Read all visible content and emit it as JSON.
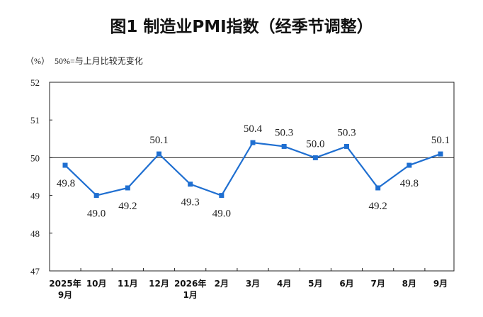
{
  "chart_data": {
    "type": "line",
    "title": "图1  制造业PMI指数（经季节调整）",
    "unit_note": "（%）",
    "reference_note": "50%=与上月比较无变化",
    "categories": [
      [
        "2025年",
        "9月"
      ],
      [
        "10月"
      ],
      [
        "11月"
      ],
      [
        "12月"
      ],
      [
        "2026年",
        "1月"
      ],
      [
        "2月"
      ],
      [
        "3月"
      ],
      [
        "4月"
      ],
      [
        "5月"
      ],
      [
        "6月"
      ],
      [
        "7月"
      ],
      [
        "8月"
      ],
      [
        "9月"
      ]
    ],
    "series": [
      {
        "values": [
          49.8,
          49.0,
          49.2,
          50.1,
          49.3,
          49.0,
          50.4,
          50.3,
          50.0,
          50.3,
          49.2,
          49.8,
          50.1
        ]
      }
    ],
    "data_labels": [
      "49.8",
      "49.0",
      "49.2",
      "50.1",
      "49.3",
      "49.0",
      "50.4",
      "50.3",
      "50.0",
      "50.3",
      "49.2",
      "49.8",
      "50.1"
    ],
    "label_position": [
      "below",
      "below",
      "below",
      "above",
      "below",
      "below",
      "above",
      "above",
      "above",
      "above",
      "below",
      "below",
      "above"
    ],
    "ylim": [
      47,
      52
    ],
    "yticks": [
      "47",
      "48",
      "49",
      "50",
      "51",
      "52"
    ],
    "reference_line": 50,
    "line_color": "#1f6fd1",
    "grid": false
  }
}
